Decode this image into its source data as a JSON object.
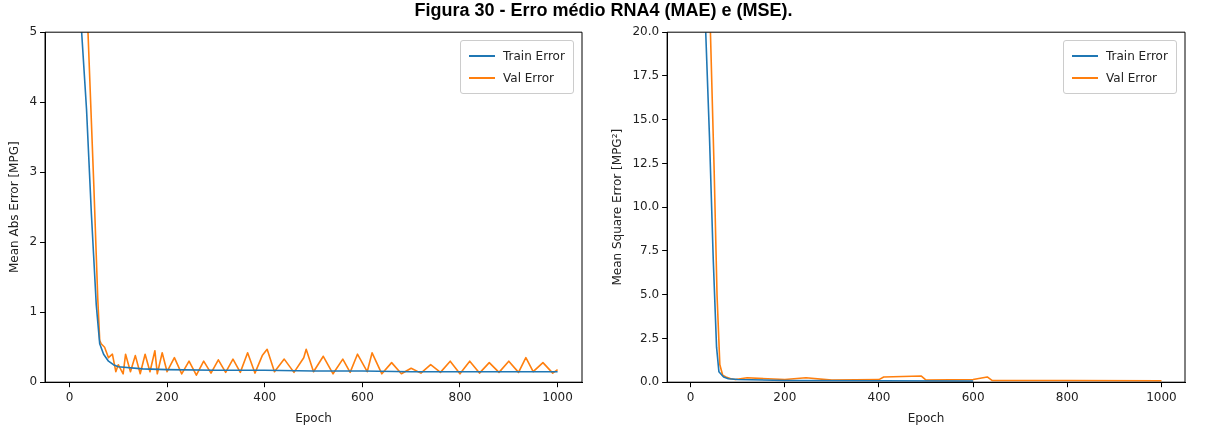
{
  "chart_data": [
    {
      "type": "line",
      "title": "Figura 30 - Erro médio RNA4 (MAE) e (MSE).",
      "xlabel": "Epoch",
      "ylabel": "Mean Abs Error [MPG]",
      "xlim": [
        -50,
        1050
      ],
      "ylim": [
        0,
        5
      ],
      "xticks": [
        0,
        200,
        400,
        600,
        800,
        1000
      ],
      "yticks": [
        0,
        1,
        2,
        3,
        4,
        5
      ],
      "grid": false,
      "legend": "top right",
      "marker": "none",
      "line_style": "solid",
      "series": [
        {
          "name": "Train Error",
          "color": "#1f77b4",
          "x": [
            25,
            35,
            45,
            55,
            62,
            70,
            80,
            90,
            100,
            150,
            200,
            300,
            400,
            500,
            600,
            700,
            800,
            900,
            1000
          ],
          "values": [
            5,
            3.9,
            2.4,
            1.1,
            0.55,
            0.4,
            0.3,
            0.25,
            0.22,
            0.19,
            0.18,
            0.17,
            0.17,
            0.16,
            0.16,
            0.15,
            0.15,
            0.15,
            0.15
          ]
        },
        {
          "name": "Val Error",
          "color": "#ff7f0e",
          "x": [
            38,
            50,
            58,
            62,
            65,
            72,
            80,
            88,
            95,
            100,
            110,
            115,
            125,
            135,
            145,
            155,
            165,
            175,
            180,
            190,
            200,
            215,
            230,
            245,
            260,
            275,
            290,
            305,
            320,
            335,
            350,
            365,
            380,
            395,
            405,
            420,
            440,
            460,
            480,
            485,
            500,
            520,
            540,
            560,
            575,
            590,
            610,
            620,
            640,
            660,
            680,
            700,
            720,
            740,
            760,
            780,
            800,
            820,
            840,
            860,
            880,
            900,
            920,
            935,
            950,
            970,
            990,
            1000
          ],
          "values": [
            5,
            2.8,
            1.2,
            0.6,
            0.55,
            0.5,
            0.35,
            0.4,
            0.15,
            0.25,
            0.12,
            0.4,
            0.15,
            0.38,
            0.12,
            0.4,
            0.15,
            0.45,
            0.12,
            0.42,
            0.15,
            0.35,
            0.12,
            0.3,
            0.1,
            0.3,
            0.13,
            0.32,
            0.14,
            0.33,
            0.14,
            0.42,
            0.13,
            0.38,
            0.47,
            0.15,
            0.33,
            0.14,
            0.35,
            0.47,
            0.15,
            0.37,
            0.12,
            0.33,
            0.14,
            0.4,
            0.15,
            0.42,
            0.12,
            0.28,
            0.12,
            0.2,
            0.13,
            0.25,
            0.14,
            0.3,
            0.12,
            0.3,
            0.13,
            0.28,
            0.14,
            0.3,
            0.14,
            0.35,
            0.15,
            0.28,
            0.13,
            0.18
          ]
        }
      ]
    },
    {
      "type": "line",
      "xlabel": "Epoch",
      "ylabel": "Mean Square Error [MPG²]",
      "xlim": [
        -50,
        1050
      ],
      "ylim": [
        0,
        20
      ],
      "xticks": [
        0,
        200,
        400,
        600,
        800,
        1000
      ],
      "yticks": [
        {
          "value": 0,
          "label": "0.0"
        },
        {
          "value": 2.5,
          "label": "2.5"
        },
        {
          "value": 5,
          "label": "5.0"
        },
        {
          "value": 7.5,
          "label": "7.5"
        },
        {
          "value": 10,
          "label": "10.0"
        },
        {
          "value": 12.5,
          "label": "12.5"
        },
        {
          "value": 15,
          "label": "15.0"
        },
        {
          "value": 17.5,
          "label": "17.5"
        },
        {
          "value": 20,
          "label": "20.0"
        }
      ],
      "grid": false,
      "legend": "top right",
      "marker": "none",
      "line_style": "solid",
      "series": [
        {
          "name": "Train Error",
          "color": "#1f77b4",
          "x": [
            32,
            40,
            48,
            55,
            60,
            70,
            80,
            100,
            200,
            400,
            600
          ],
          "values": [
            20,
            14,
            7,
            2,
            0.6,
            0.3,
            0.2,
            0.15,
            0.1,
            0.08,
            0.07
          ]
        },
        {
          "name": "Val Error",
          "color": "#ff7f0e",
          "x": [
            42,
            50,
            56,
            62,
            68,
            75,
            85,
            95,
            120,
            200,
            245,
            300,
            400,
            410,
            490,
            500,
            600,
            630,
            640,
            800,
            1000
          ],
          "values": [
            20,
            12,
            5,
            1,
            0.4,
            0.3,
            0.2,
            0.15,
            0.25,
            0.15,
            0.25,
            0.12,
            0.15,
            0.3,
            0.35,
            0.12,
            0.15,
            0.3,
            0.1,
            0.1,
            0.08
          ]
        }
      ]
    }
  ]
}
